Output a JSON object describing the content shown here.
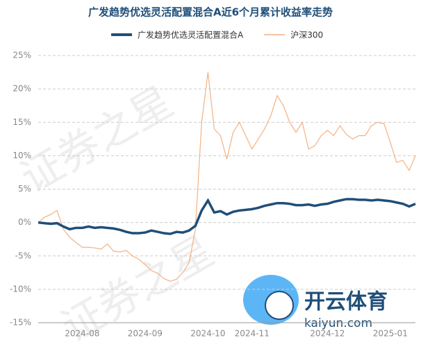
{
  "chart_data": {
    "type": "line",
    "title": "广发趋势优选灵活配置混合A近6个月累计收益率走势",
    "categories": [
      null,
      null,
      null,
      null,
      null,
      null,
      null,
      "2024-08",
      null,
      null,
      null,
      null,
      null,
      null,
      null,
      null,
      null,
      "2024-09",
      null,
      null,
      null,
      null,
      null,
      null,
      null,
      null,
      null,
      "2024-10",
      null,
      null,
      null,
      null,
      null,
      null,
      "2024-11",
      null,
      null,
      null,
      null,
      null,
      null,
      null,
      null,
      null,
      null,
      null,
      "2024-12",
      null,
      null,
      null,
      null,
      null,
      null,
      null,
      null,
      null,
      "2025-01",
      null,
      null,
      null,
      null
    ],
    "series": [
      {
        "name": "广发趋势优选灵活配置混合A",
        "color": "#1f4e79",
        "values": [
          0,
          -0.1,
          -0.2,
          -0.1,
          -0.6,
          -1,
          -0.8,
          -0.8,
          -0.6,
          -0.8,
          -0.7,
          -0.8,
          -0.9,
          -1.1,
          -1.4,
          -1.6,
          -1.6,
          -1.5,
          -1.2,
          -1.4,
          -1.6,
          -1.7,
          -1.4,
          -1.5,
          -1.2,
          -0.5,
          1.8,
          3.3,
          1.5,
          1.7,
          1.2,
          1.6,
          1.8,
          1.9,
          2,
          2.2,
          2.5,
          2.7,
          2.9,
          2.9,
          2.8,
          2.6,
          2.6,
          2.7,
          2.5,
          2.7,
          2.8,
          3.1,
          3.3,
          3.5,
          3.5,
          3.4,
          3.4,
          3.3,
          3.4,
          3.3,
          3.2,
          3,
          2.8,
          2.4,
          2.8
        ]
      },
      {
        "name": "沪深300",
        "color": "#f4b183",
        "values": [
          0,
          0.8,
          1.2,
          1.8,
          -1,
          -2.2,
          -3,
          -3.7,
          -3.7,
          -3.8,
          -4,
          -3.2,
          -4.3,
          -4.4,
          -4.2,
          -5,
          -5.5,
          -6.3,
          -7.2,
          -7.6,
          -8.4,
          -8.8,
          -8.5,
          -7.5,
          -6,
          -1,
          15,
          22.5,
          14,
          13,
          9.5,
          13.5,
          15,
          13,
          11,
          12.5,
          14,
          16,
          19,
          17.5,
          15,
          13.5,
          15,
          11,
          11.5,
          13,
          13.8,
          13,
          14.5,
          13.2,
          12.5,
          13,
          13,
          14.5,
          15,
          14.8,
          12,
          9,
          9.3,
          7.8,
          10
        ]
      }
    ],
    "ylim": [
      -15,
      25
    ],
    "yticks": [
      {
        "value": -15,
        "label": "-15%"
      },
      {
        "value": -10,
        "label": "-10%"
      },
      {
        "value": -5,
        "label": "-5%"
      },
      {
        "value": 0,
        "label": "0%"
      },
      {
        "value": 5,
        "label": "5%"
      },
      {
        "value": 10,
        "label": "10%"
      },
      {
        "value": 15,
        "label": "15%"
      },
      {
        "value": 20,
        "label": "20%"
      },
      {
        "value": 25,
        "label": "25%"
      }
    ],
    "grid": true,
    "watermark": "证券之星",
    "logo": {
      "name": "开云体育",
      "url": "kaiyun.com"
    }
  }
}
